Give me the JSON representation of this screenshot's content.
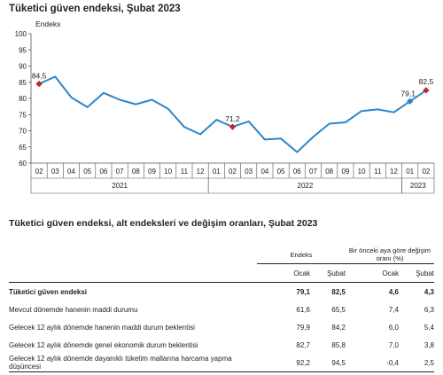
{
  "chart_data": {
    "type": "line",
    "title": "Tüketici güven endeksi, Şubat 2023",
    "ylabel": "Endeks",
    "ylim": [
      60,
      100
    ],
    "yticks": [
      60,
      65,
      70,
      75,
      80,
      85,
      90,
      95,
      100
    ],
    "grid": false,
    "line_color": "#2e86c9",
    "marker_color": "#c0282f",
    "marker_color_latest": "#2e86c9",
    "x": [
      "02",
      "03",
      "04",
      "05",
      "06",
      "07",
      "08",
      "09",
      "10",
      "11",
      "12",
      "01",
      "02",
      "03",
      "04",
      "05",
      "06",
      "07",
      "08",
      "09",
      "10",
      "11",
      "12",
      "01",
      "02"
    ],
    "years": [
      {
        "label": "2021",
        "start": 0,
        "end": 10
      },
      {
        "label": "2022",
        "start": 11,
        "end": 22
      },
      {
        "label": "2023",
        "start": 23,
        "end": 24
      }
    ],
    "series": [
      {
        "values": [
          84.5,
          86.7,
          80.3,
          77.3,
          81.7,
          79.6,
          78.2,
          79.6,
          76.8,
          71.2,
          68.9,
          73.4,
          71.2,
          72.9,
          67.3,
          67.6,
          63.4,
          68.1,
          72.2,
          72.6,
          76.1,
          76.6,
          75.7,
          79.1,
          82.5
        ]
      }
    ],
    "annotations": [
      {
        "index": 0,
        "text": "84,5",
        "marker": "red"
      },
      {
        "index": 12,
        "text": "71,2",
        "marker": "red"
      },
      {
        "index": 23,
        "text": "79,1",
        "marker": "blue"
      },
      {
        "index": 24,
        "text": "82,5",
        "marker": "red"
      }
    ]
  },
  "table": {
    "title": "Tüketici güven endeksi, alt endeksleri ve değişim oranları, Şubat 2023",
    "group_endeks": "Endeks",
    "group_change": "Bir önceki aya göre değişim oranı (%)",
    "col_labels": [
      "Ocak",
      "Şubat",
      "Ocak",
      "Şubat"
    ],
    "rows": [
      {
        "label": "Tüketici güven endeksi",
        "v": [
          "79,1",
          "82,5",
          "4,6",
          "4,3"
        ],
        "bold": true
      },
      {
        "label": "Mevcut dönemde hanenin maddi durumu",
        "v": [
          "61,6",
          "65,5",
          "7,4",
          "6,3"
        ],
        "bold": false
      },
      {
        "label": "Gelecek 12 aylık dönemde hanenin maddi durum beklentisi",
        "v": [
          "79,9",
          "84,2",
          "6,0",
          "5,4"
        ],
        "bold": false
      },
      {
        "label": "Gelecek 12 aylık dönemde genel ekonomik durum beklentisi",
        "v": [
          "82,7",
          "85,8",
          "7,0",
          "3,8"
        ],
        "bold": false
      },
      {
        "label": "Gelecek 12 aylık dönemde dayanıklı tüketim mallarına harcama yapma düşüncesi",
        "v": [
          "92,2",
          "94,5",
          "-0,4",
          "2,5"
        ],
        "bold": false
      }
    ]
  }
}
